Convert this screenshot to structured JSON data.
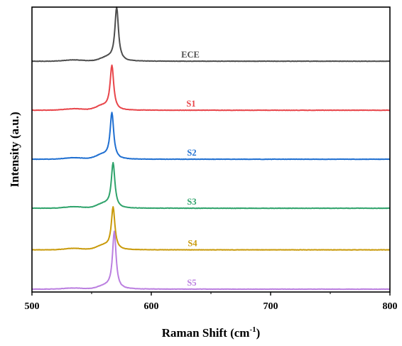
{
  "chart_data": {
    "type": "line",
    "title": "",
    "xlabel": "Raman Shift (cm",
    "xlabel_sup": "-1",
    "xlabel_suffix": ")",
    "ylabel": "Intensity (a.u.)",
    "xlim": [
      500,
      800
    ],
    "xticks": [
      "500",
      "600",
      "700",
      "800"
    ],
    "y_tick_labels": false,
    "grid": false,
    "legend": "inline labels next to each curve",
    "series": [
      {
        "name": "ECE",
        "color": "#4d4d4d",
        "peak_center": 571,
        "peak_width": 1.8,
        "peak_height": 0.93,
        "baseline": 4.0,
        "shoulder": 0.06
      },
      {
        "name": "S1",
        "color": "#e8454a",
        "peak_center": 567,
        "peak_width": 1.8,
        "peak_height": 0.77,
        "baseline": 3.14,
        "shoulder": 0.07
      },
      {
        "name": "S2",
        "color": "#1f6fd1",
        "peak_center": 567,
        "peak_width": 1.8,
        "peak_height": 0.8,
        "baseline": 2.28,
        "shoulder": 0.07
      },
      {
        "name": "S3",
        "color": "#2fa36b",
        "peak_center": 568,
        "peak_width": 1.8,
        "peak_height": 0.78,
        "baseline": 1.42,
        "shoulder": 0.07
      },
      {
        "name": "S4",
        "color": "#c99a0a",
        "peak_center": 568,
        "peak_width": 1.8,
        "peak_height": 0.73,
        "baseline": 0.69,
        "shoulder": 0.07
      },
      {
        "name": "S5",
        "color": "#bb7fe0",
        "peak_center": 569,
        "peak_width": 1.8,
        "peak_height": 1.0,
        "baseline": 0.0,
        "shoulder": 0.05
      }
    ]
  }
}
